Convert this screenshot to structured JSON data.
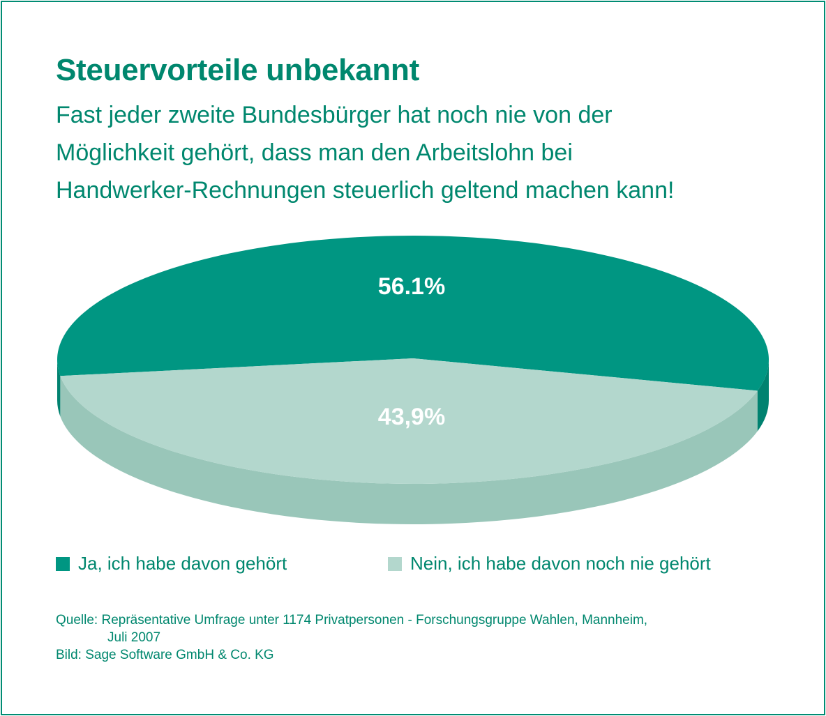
{
  "header": {
    "title": "Steuervorteile unbekannt",
    "subtitle_lines": [
      "Fast jeder zweite Bundesbürger hat noch nie von der",
      "Möglichkeit gehört, dass man den Arbeitslohn bei",
      "Handwerker-Rechnungen steuerlich geltend machen kann!"
    ]
  },
  "chart_data": {
    "type": "pie",
    "title": "Steuervorteile unbekannt",
    "slices": [
      {
        "name": "Ja, ich habe davon gehört",
        "value": 56.1,
        "label": "56.1%",
        "color": "#009682",
        "side_color": "#008270"
      },
      {
        "name": "Nein, ich habe davon noch nie gehört",
        "value": 43.9,
        "label": "43,9%",
        "color": "#b3d7cd",
        "side_color": "#99c6b9"
      }
    ],
    "legend_position": "bottom",
    "style": "3d-ellipse"
  },
  "legend": {
    "items": [
      {
        "label": "Ja, ich habe davon gehört",
        "color": "#009682"
      },
      {
        "label": "Nein, ich habe davon noch nie gehört",
        "color": "#b3d7cd"
      }
    ]
  },
  "source": {
    "line1": "Quelle: Repräsentative Umfrage unter 1174 Privatpersonen - Forschungsgruppe Wahlen, Mannheim,",
    "line2": "Juli 2007",
    "line3": "Bild: Sage Software GmbH & Co. KG"
  },
  "colors": {
    "accent": "#00876e",
    "border": "#008c73"
  }
}
